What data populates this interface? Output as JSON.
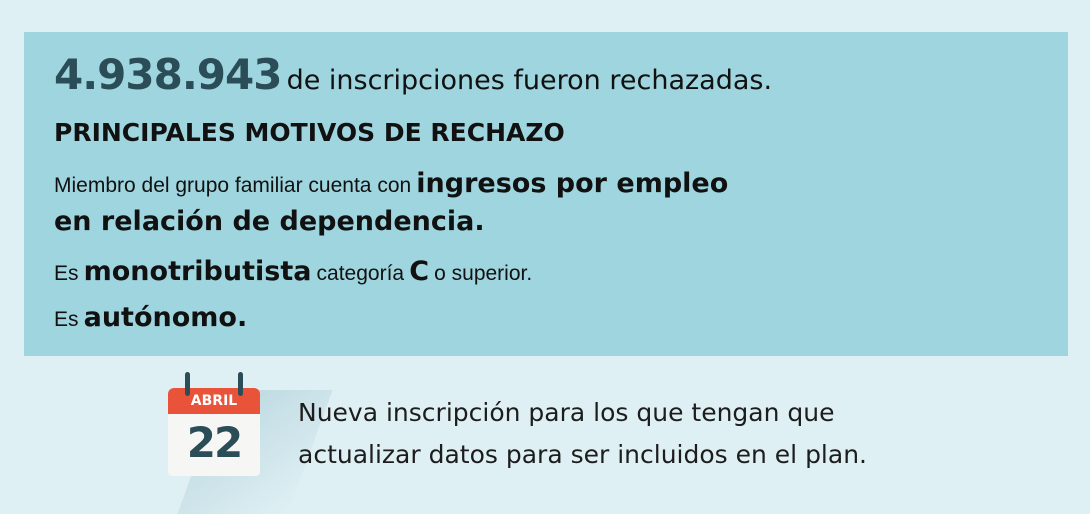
{
  "headline": {
    "number": "4.938.943",
    "text": "de inscripciones fueron rechazadas."
  },
  "section_title": "PRINCIPALES MOTIVOS DE RECHAZO",
  "reasons": [
    {
      "part1": "Miembro del grupo familiar cuenta con",
      "part2": "ingresos por empleo",
      "line2": "en relación de dependencia."
    },
    {
      "part1": "Es",
      "part2": "monotributista",
      "part3": "categoría",
      "part4": "C",
      "part5": "o superior."
    },
    {
      "part1": "Es",
      "part2": "autónomo."
    }
  ],
  "calendar": {
    "month": "ABRIL",
    "day": "22",
    "icon": "calendar-icon",
    "color": "#e8533a"
  },
  "note": {
    "line1": "Nueva inscripción para los que tengan que",
    "line2": "actualizar datos para ser incluidos en el plan."
  },
  "colors": {
    "background": "#dff0f4",
    "panel": "#9fd5df",
    "accent": "#2a4d57"
  }
}
